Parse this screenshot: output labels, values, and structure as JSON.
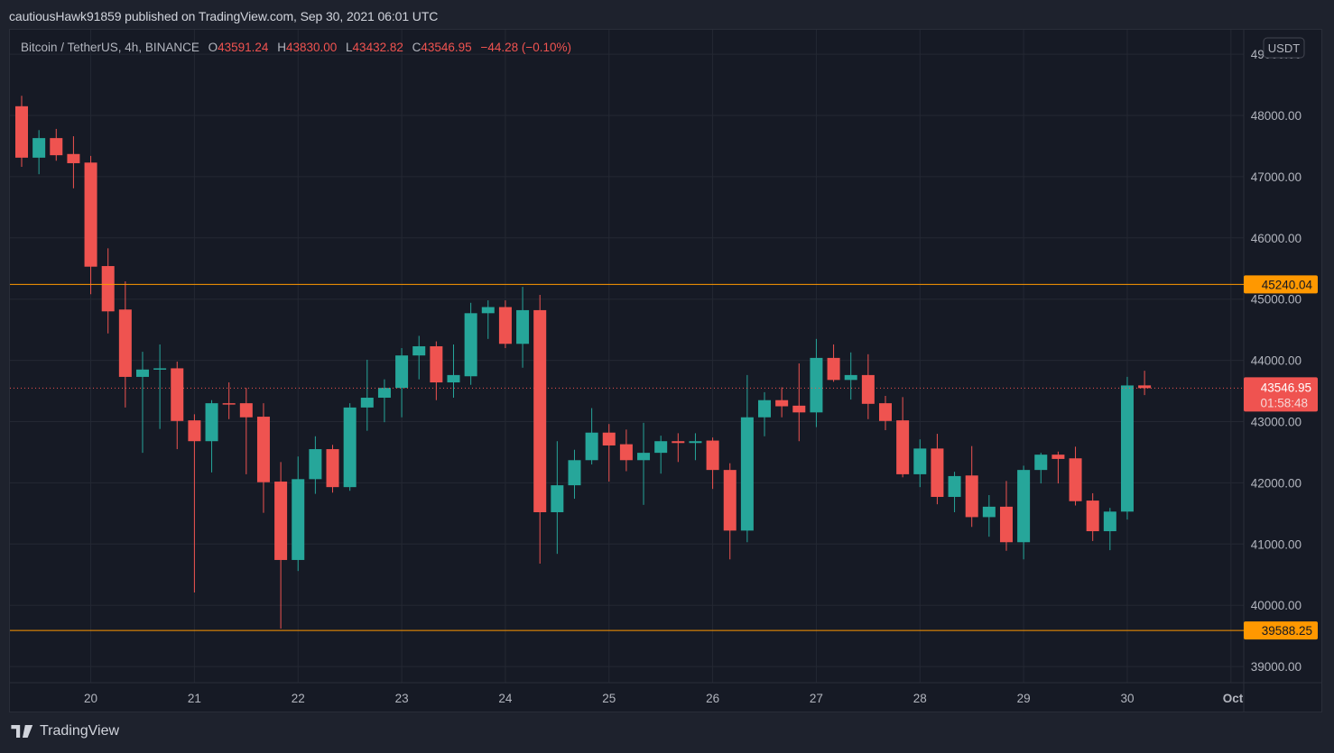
{
  "header": {
    "publisher_line": "cautiousHawk91859 published on TradingView.com, Sep 30, 2021 06:01 UTC"
  },
  "legend": {
    "symbol": "Bitcoin / TetherUS, 4h, BINANCE",
    "o_label": "O",
    "o_value": "43591.24",
    "h_label": "H",
    "h_value": "43830.00",
    "l_label": "L",
    "l_value": "43432.82",
    "c_label": "C",
    "c_value": "43546.95",
    "change": "−44.28 (−0.10%)"
  },
  "footer": {
    "brand": "TradingView"
  },
  "colors": {
    "up": "#26a69a",
    "down": "#ef5350",
    "level": "#ff9800",
    "grid": "#242833",
    "bg": "#161a25",
    "axis_text": "#b2b5be"
  },
  "chart_data": {
    "type": "candlestick",
    "title": "Bitcoin / TetherUS, 4h, BINANCE",
    "currency": "USDT",
    "xlabel": "",
    "ylabel": "USDT",
    "ylim": [
      38700,
      49100
    ],
    "grid": true,
    "y_ticks": [
      "39000.00",
      "40000.00",
      "41000.00",
      "42000.00",
      "43000.00",
      "44000.00",
      "45000.00",
      "46000.00",
      "47000.00",
      "48000.00",
      "49000.00"
    ],
    "x_ticks": [
      {
        "label": "20",
        "index": 4
      },
      {
        "label": "21",
        "index": 10
      },
      {
        "label": "22",
        "index": 16
      },
      {
        "label": "23",
        "index": 22
      },
      {
        "label": "24",
        "index": 28
      },
      {
        "label": "25",
        "index": 34
      },
      {
        "label": "26",
        "index": 40
      },
      {
        "label": "27",
        "index": 46
      },
      {
        "label": "28",
        "index": 52
      },
      {
        "label": "29",
        "index": 58
      },
      {
        "label": "30",
        "index": 64
      },
      {
        "label": "Oct",
        "index": 70
      }
    ],
    "horizontal_levels": [
      {
        "value": 45240.04,
        "label": "45240.04",
        "color": "#ff9800"
      },
      {
        "value": 39588.25,
        "label": "39588.25",
        "color": "#ff9800"
      }
    ],
    "last_price": {
      "value": 43546.95,
      "label": "43546.95",
      "countdown": "01:58:48",
      "color": "#ef5350"
    },
    "candles": [
      [
        48150,
        48320,
        47160,
        47310
      ],
      [
        47310,
        47760,
        47040,
        47630
      ],
      [
        47630,
        47780,
        47260,
        47350
      ],
      [
        47370,
        47660,
        46810,
        47220
      ],
      [
        47230,
        47340,
        45080,
        45530
      ],
      [
        45540,
        45830,
        44440,
        44800
      ],
      [
        44830,
        45290,
        43230,
        43730
      ],
      [
        43730,
        44140,
        42490,
        43850
      ],
      [
        43850,
        44260,
        42880,
        43870
      ],
      [
        43870,
        43980,
        42550,
        43010
      ],
      [
        43020,
        43120,
        40210,
        42680
      ],
      [
        42680,
        43350,
        42170,
        43300
      ],
      [
        43300,
        43640,
        43040,
        43290
      ],
      [
        43300,
        43550,
        42140,
        43070
      ],
      [
        43080,
        43300,
        41510,
        42010
      ],
      [
        42020,
        42340,
        39620,
        40740
      ],
      [
        40740,
        42430,
        40560,
        42060
      ],
      [
        42060,
        42760,
        41820,
        42550
      ],
      [
        42550,
        42620,
        41840,
        41930
      ],
      [
        41930,
        43300,
        41870,
        43230
      ],
      [
        43230,
        44010,
        42850,
        43390
      ],
      [
        43390,
        43690,
        42990,
        43550
      ],
      [
        43550,
        44200,
        43070,
        44080
      ],
      [
        44080,
        44400,
        43690,
        44230
      ],
      [
        44230,
        44310,
        43350,
        43640
      ],
      [
        43640,
        44260,
        43390,
        43760
      ],
      [
        43740,
        44940,
        43600,
        44770
      ],
      [
        44770,
        44980,
        44350,
        44870
      ],
      [
        44870,
        44980,
        44200,
        44270
      ],
      [
        44270,
        45200,
        43880,
        44820
      ],
      [
        44820,
        45070,
        40680,
        41520
      ],
      [
        41520,
        42680,
        40840,
        41960
      ],
      [
        41960,
        42540,
        41740,
        42370
      ],
      [
        42370,
        43220,
        42300,
        42820
      ],
      [
        42820,
        42960,
        42020,
        42610
      ],
      [
        42630,
        42870,
        42190,
        42370
      ],
      [
        42370,
        42980,
        41640,
        42490
      ],
      [
        42490,
        42770,
        42150,
        42680
      ],
      [
        42680,
        42810,
        42340,
        42650
      ],
      [
        42650,
        42810,
        42370,
        42680
      ],
      [
        42690,
        42740,
        41900,
        42210
      ],
      [
        42210,
        42320,
        40750,
        41220
      ],
      [
        41220,
        43760,
        41030,
        43070
      ],
      [
        43070,
        43480,
        42760,
        43350
      ],
      [
        43350,
        43560,
        43070,
        43250
      ],
      [
        43260,
        43950,
        42680,
        43150
      ],
      [
        43150,
        44350,
        42910,
        44040
      ],
      [
        44040,
        44260,
        43650,
        43680
      ],
      [
        43680,
        44130,
        43360,
        43760
      ],
      [
        43760,
        44100,
        43040,
        43290
      ],
      [
        43300,
        43420,
        42860,
        43010
      ],
      [
        43020,
        43400,
        42090,
        42140
      ],
      [
        42140,
        42710,
        41930,
        42560
      ],
      [
        42560,
        42800,
        41650,
        41770
      ],
      [
        41770,
        42180,
        41520,
        42110
      ],
      [
        42120,
        42600,
        41280,
        41440
      ],
      [
        41440,
        41800,
        41120,
        41610
      ],
      [
        41610,
        42030,
        40890,
        41030
      ],
      [
        41030,
        42280,
        40750,
        42210
      ],
      [
        42210,
        42490,
        41990,
        42460
      ],
      [
        42460,
        42510,
        41990,
        42390
      ],
      [
        42400,
        42590,
        41630,
        41700
      ],
      [
        41710,
        41830,
        41050,
        41210
      ],
      [
        41210,
        41590,
        40900,
        41530
      ],
      [
        41530,
        43730,
        41400,
        43590
      ],
      [
        43591.24,
        43830.0,
        43432.82,
        43546.95
      ]
    ],
    "candle_format": [
      "open",
      "high",
      "low",
      "close"
    ]
  }
}
